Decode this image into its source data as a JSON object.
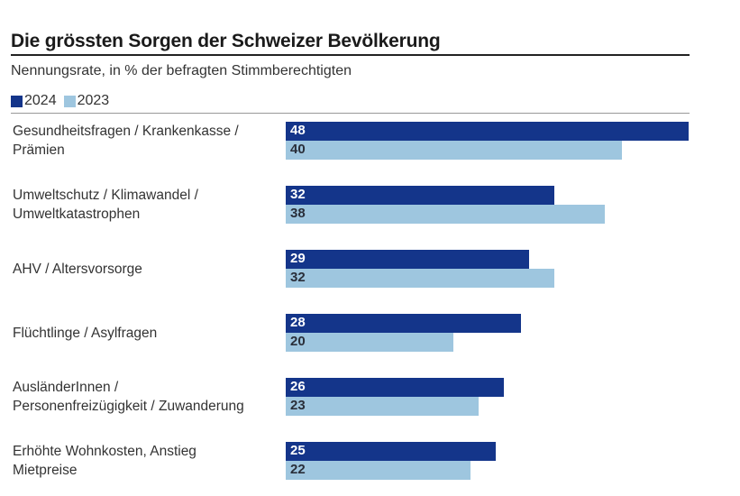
{
  "chart_data": {
    "type": "bar",
    "orientation": "horizontal",
    "title": "Die grössten Sorgen der Schweizer Bevölkerung",
    "subtitle": "Nennungsrate, in % der befragten Stimmberechtigten",
    "categories": [
      [
        "Gesundheitsfragen / Krankenkasse /",
        "Prämien"
      ],
      [
        "Umweltschutz / Klimawandel /",
        "Umweltkatastrophen"
      ],
      [
        "AHV / Altersvorsorge"
      ],
      [
        "Flüchtlinge / Asylfragen"
      ],
      [
        "AusländerInnen /",
        "Personenfreizügigkeit / Zuwanderung"
      ],
      [
        "Erhöhte Wohnkosten, Anstieg",
        "Mietpreise"
      ]
    ],
    "series": [
      {
        "name": "2024",
        "color": "#14358a",
        "label_color": "#ffffff",
        "values": [
          48,
          32,
          29,
          28,
          26,
          25
        ]
      },
      {
        "name": "2023",
        "color": "#9ec6df",
        "label_color": "#2a2f3a",
        "values": [
          40,
          38,
          32,
          20,
          23,
          22
        ]
      }
    ],
    "xlim": [
      0,
      48
    ],
    "grid": false,
    "legend": "top-left"
  }
}
